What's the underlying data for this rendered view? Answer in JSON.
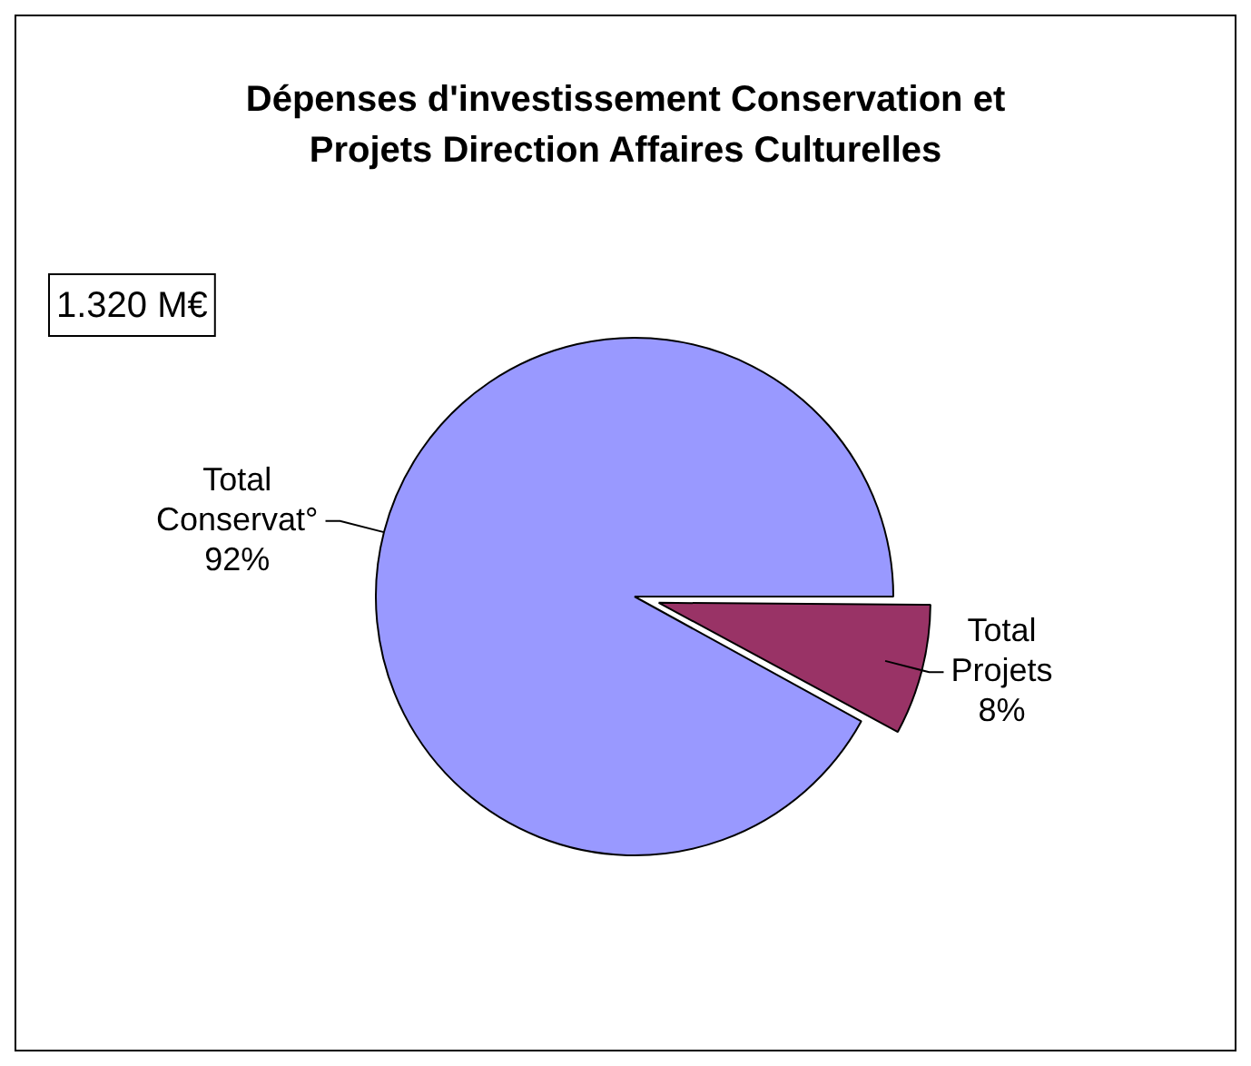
{
  "chart_data": {
    "type": "pie",
    "title": "Dépenses d'investissement Conservation et Projets Direction Affaires Culturelles",
    "categories": [
      "Total Projets",
      "Total Conservat°"
    ],
    "values": [
      8,
      92
    ],
    "colors": [
      "#993366",
      "#9999ff"
    ],
    "value_labels": [
      "8%",
      "92%"
    ],
    "annotations": [
      "1.320 M€"
    ],
    "legend": false
  }
}
